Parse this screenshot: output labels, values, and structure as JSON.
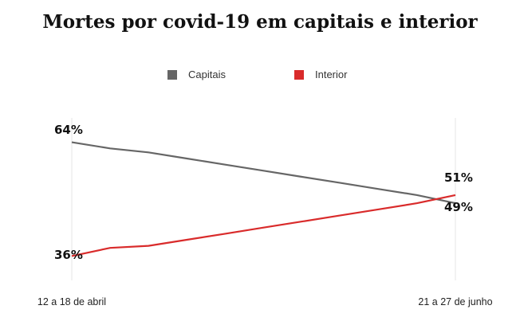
{
  "chart_data": {
    "type": "line",
    "title": "Mortes por covid-19 em capitais e interior",
    "x_tick_labels": [
      "12 a 18 de abril",
      "21 a 27 de junho"
    ],
    "weeks": 11,
    "ylim": [
      30,
      70
    ],
    "grid": false,
    "legend_position": "top",
    "series": [
      {
        "name": "Capitais",
        "color": "#666666",
        "values": [
          64,
          62.5,
          61.5,
          60,
          58.5,
          57,
          55.5,
          54,
          52.5,
          51,
          49
        ],
        "start_label": "64%",
        "end_label": "49%"
      },
      {
        "name": "Interior",
        "color": "#d92b2b",
        "values": [
          36,
          38,
          38.5,
          40,
          41.5,
          43,
          44.5,
          46,
          47.5,
          49,
          51
        ],
        "start_label": "36%",
        "end_label": "51%"
      }
    ]
  }
}
